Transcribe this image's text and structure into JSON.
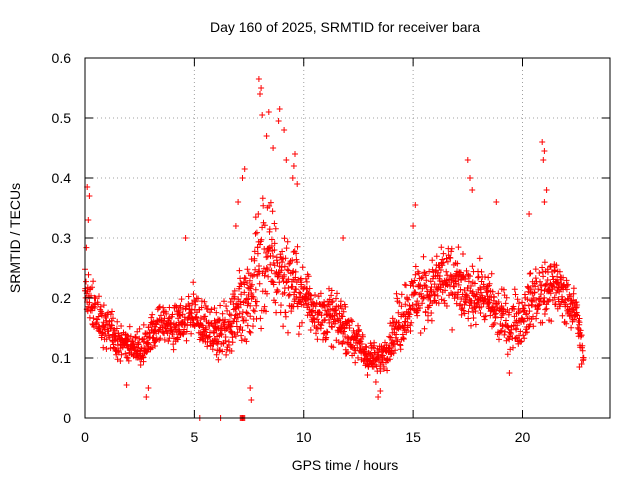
{
  "chart_data": {
    "type": "scatter",
    "title": "Day 160 of 2025, SRMTID for receiver bara",
    "xlabel": "GPS time / hours",
    "ylabel": "SRMTID / TECUs",
    "xlim": [
      0,
      24
    ],
    "ylim": [
      0,
      0.6
    ],
    "xticks": [
      0,
      5,
      10,
      15,
      20
    ],
    "yticks": [
      0,
      0.1,
      0.2,
      0.3,
      0.4,
      0.5,
      0.6
    ],
    "ytick_labels": [
      "0",
      "0.1",
      "0.2",
      "0.3",
      "0.4",
      "0.5",
      "0.6"
    ],
    "grid": true,
    "marker": "+",
    "series_color": "#ff0000",
    "profile": {
      "note": "approximate median SRMTID (TECU) and spread (half-range) vs GPS hour, estimated from the scatter",
      "hours": [
        0.0,
        0.5,
        1.0,
        1.5,
        2.0,
        2.5,
        3.0,
        3.5,
        4.0,
        4.5,
        5.0,
        5.5,
        6.0,
        6.5,
        7.0,
        7.5,
        8.0,
        8.5,
        9.0,
        9.5,
        10.0,
        10.5,
        11.0,
        11.5,
        12.0,
        12.5,
        13.0,
        13.5,
        14.0,
        14.5,
        15.0,
        15.5,
        16.0,
        16.5,
        17.0,
        17.5,
        18.0,
        18.5,
        19.0,
        19.5,
        20.0,
        20.5,
        21.0,
        21.5,
        22.0,
        22.5,
        22.8
      ],
      "median": [
        0.21,
        0.17,
        0.15,
        0.13,
        0.12,
        0.11,
        0.14,
        0.16,
        0.15,
        0.16,
        0.18,
        0.15,
        0.14,
        0.15,
        0.19,
        0.18,
        0.27,
        0.26,
        0.24,
        0.22,
        0.21,
        0.18,
        0.17,
        0.16,
        0.15,
        0.12,
        0.1,
        0.1,
        0.13,
        0.17,
        0.2,
        0.21,
        0.22,
        0.23,
        0.22,
        0.2,
        0.21,
        0.19,
        0.17,
        0.16,
        0.17,
        0.2,
        0.21,
        0.22,
        0.2,
        0.17,
        0.1
      ],
      "spread": [
        0.1,
        0.06,
        0.05,
        0.04,
        0.04,
        0.05,
        0.05,
        0.04,
        0.05,
        0.06,
        0.06,
        0.05,
        0.06,
        0.07,
        0.1,
        0.12,
        0.16,
        0.14,
        0.13,
        0.1,
        0.07,
        0.06,
        0.06,
        0.06,
        0.06,
        0.05,
        0.04,
        0.04,
        0.05,
        0.08,
        0.09,
        0.08,
        0.09,
        0.09,
        0.08,
        0.07,
        0.07,
        0.07,
        0.07,
        0.06,
        0.07,
        0.07,
        0.09,
        0.07,
        0.05,
        0.05,
        0.02
      ]
    },
    "highlight_points": [
      {
        "x": 0.1,
        "y": 0.385
      },
      {
        "x": 0.2,
        "y": 0.37
      },
      {
        "x": 0.15,
        "y": 0.33
      },
      {
        "x": 4.6,
        "y": 0.3
      },
      {
        "x": 6.9,
        "y": 0.32
      },
      {
        "x": 7.0,
        "y": 0.36
      },
      {
        "x": 7.3,
        "y": 0.415
      },
      {
        "x": 7.2,
        "y": 0.4
      },
      {
        "x": 7.95,
        "y": 0.565
      },
      {
        "x": 8.05,
        "y": 0.55
      },
      {
        "x": 8.0,
        "y": 0.54
      },
      {
        "x": 8.1,
        "y": 0.505
      },
      {
        "x": 8.4,
        "y": 0.51
      },
      {
        "x": 8.3,
        "y": 0.47
      },
      {
        "x": 8.6,
        "y": 0.45
      },
      {
        "x": 8.9,
        "y": 0.515
      },
      {
        "x": 8.85,
        "y": 0.495
      },
      {
        "x": 9.1,
        "y": 0.48
      },
      {
        "x": 9.2,
        "y": 0.43
      },
      {
        "x": 9.6,
        "y": 0.44
      },
      {
        "x": 9.55,
        "y": 0.42
      },
      {
        "x": 9.5,
        "y": 0.4
      },
      {
        "x": 9.7,
        "y": 0.39
      },
      {
        "x": 7.55,
        "y": 0.05
      },
      {
        "x": 7.6,
        "y": 0.03
      },
      {
        "x": 11.8,
        "y": 0.3
      },
      {
        "x": 15.1,
        "y": 0.355
      },
      {
        "x": 15.0,
        "y": 0.32
      },
      {
        "x": 17.5,
        "y": 0.43
      },
      {
        "x": 17.6,
        "y": 0.4
      },
      {
        "x": 17.7,
        "y": 0.38
      },
      {
        "x": 18.8,
        "y": 0.36
      },
      {
        "x": 20.3,
        "y": 0.34
      },
      {
        "x": 20.9,
        "y": 0.46
      },
      {
        "x": 21.0,
        "y": 0.445
      },
      {
        "x": 20.95,
        "y": 0.43
      },
      {
        "x": 21.1,
        "y": 0.38
      },
      {
        "x": 21.0,
        "y": 0.36
      },
      {
        "x": 13.4,
        "y": 0.035
      },
      {
        "x": 13.5,
        "y": 0.045
      },
      {
        "x": 13.3,
        "y": 0.06
      },
      {
        "x": 2.8,
        "y": 0.035
      },
      {
        "x": 2.9,
        "y": 0.05
      },
      {
        "x": 1.9,
        "y": 0.055
      },
      {
        "x": 19.4,
        "y": 0.075
      },
      {
        "x": 22.6,
        "y": 0.085
      },
      {
        "x": 22.7,
        "y": 0.09
      }
    ],
    "zero_points": [
      {
        "x": 5.25,
        "y": 0
      },
      {
        "x": 6.2,
        "y": 0
      },
      {
        "x": 7.1,
        "y": 0
      },
      {
        "x": 7.15,
        "y": 0
      },
      {
        "x": 7.2,
        "y": 0
      },
      {
        "x": 7.25,
        "y": 0
      },
      {
        "x": 7.3,
        "y": 0
      }
    ]
  }
}
